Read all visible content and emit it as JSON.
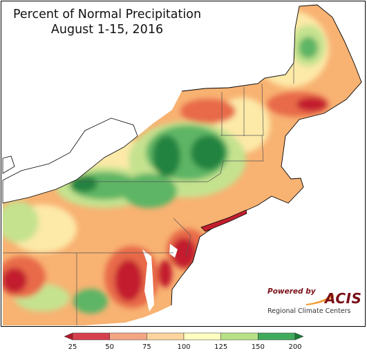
{
  "title": {
    "line1": "Percent of Normal Precipitation",
    "line2": "August 1-15, 2016"
  },
  "logo": {
    "powered_by": "Powered by",
    "name": "ACIS",
    "subtitle": "Regional Climate Centers"
  },
  "legend": {
    "ticks": [
      "25",
      "50",
      "75",
      "100",
      "125",
      "150",
      "200"
    ],
    "bins": [
      {
        "label": "< 25",
        "color": "#b2182b"
      },
      {
        "label": "25-50",
        "color": "#d6404e"
      },
      {
        "label": "50-75",
        "color": "#f4a582"
      },
      {
        "label": "75-100",
        "color": "#fdd49e"
      },
      {
        "label": "100-125",
        "color": "#fefec0"
      },
      {
        "label": "125-150",
        "color": "#b8e186"
      },
      {
        "label": "150-200",
        "color": "#41ab5d"
      },
      {
        "label": "> 200",
        "color": "#1a7a35"
      }
    ]
  },
  "colors": {
    "very_dry": "#c21f2e",
    "dry": "#e86a4a",
    "below": "#f8b272",
    "near_normal": "#fde9a8",
    "above": "#c5e28f",
    "wet": "#5db565",
    "very_wet": "#23833f",
    "water": "#ffffff"
  }
}
